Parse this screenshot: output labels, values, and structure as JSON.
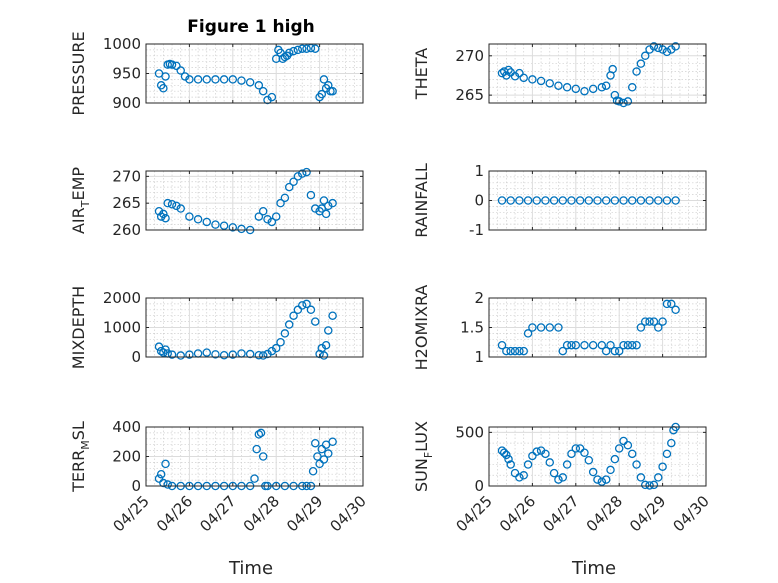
{
  "figure": {
    "title": "Figure 1 high",
    "marker_color": "#0072BD",
    "grid": true,
    "x_axis": {
      "range": [
        "04/25",
        "04/30"
      ],
      "ticks": [
        "04/25",
        "04/26",
        "04/27",
        "04/28",
        "04/29",
        "04/30"
      ],
      "label": "Time"
    }
  },
  "chart_data": [
    {
      "type": "scatter",
      "ylabel": "PRESSURE",
      "ylim": [
        900,
        1000
      ],
      "yticks": [
        900,
        950,
        1000
      ],
      "x": [
        0.3,
        0.35,
        0.4,
        0.45,
        0.5,
        0.55,
        0.6,
        0.7,
        0.8,
        0.9,
        1.0,
        1.2,
        1.4,
        1.6,
        1.8,
        2.0,
        2.2,
        2.4,
        2.6,
        2.7,
        2.8,
        2.9,
        3.0,
        3.05,
        3.1,
        3.15,
        3.2,
        3.25,
        3.3,
        3.4,
        3.5,
        3.6,
        3.7,
        3.8,
        3.9,
        4.0,
        4.05,
        4.1,
        4.15,
        4.2,
        4.25,
        4.3
      ],
      "y": [
        950,
        930,
        925,
        945,
        965,
        966,
        965,
        963,
        955,
        945,
        940,
        940,
        940,
        940,
        940,
        940,
        938,
        935,
        930,
        920,
        905,
        910,
        975,
        990,
        985,
        975,
        978,
        980,
        985,
        988,
        990,
        992,
        992,
        993,
        992,
        910,
        915,
        940,
        925,
        930,
        920,
        920
      ]
    },
    {
      "type": "scatter",
      "ylabel": "THETA",
      "ylim": [
        264,
        271.5
      ],
      "yticks": [
        265,
        270
      ],
      "x": [
        0.3,
        0.35,
        0.4,
        0.45,
        0.5,
        0.6,
        0.7,
        0.8,
        1.0,
        1.2,
        1.4,
        1.6,
        1.8,
        2.0,
        2.2,
        2.4,
        2.6,
        2.7,
        2.8,
        2.85,
        2.9,
        2.95,
        3.0,
        3.1,
        3.2,
        3.3,
        3.4,
        3.5,
        3.6,
        3.7,
        3.8,
        3.9,
        4.0,
        4.1,
        4.2,
        4.3
      ],
      "y": [
        267.8,
        268,
        267.5,
        268.2,
        267.9,
        267.4,
        267.8,
        267.2,
        267,
        266.8,
        266.5,
        266.2,
        266,
        265.8,
        265.5,
        265.8,
        266,
        266.2,
        267.5,
        268.3,
        265,
        264.3,
        264.2,
        264,
        264.2,
        266,
        268,
        269,
        270,
        270.8,
        271.2,
        271,
        270.8,
        270.5,
        270.8,
        271.2
      ]
    },
    {
      "type": "scatter",
      "ylabel": "AIR_TEMP",
      "ylim": [
        260,
        271
      ],
      "yticks": [
        260,
        265,
        270
      ],
      "x": [
        0.3,
        0.35,
        0.4,
        0.45,
        0.5,
        0.6,
        0.7,
        0.8,
        1.0,
        1.2,
        1.4,
        1.6,
        1.8,
        2.0,
        2.2,
        2.4,
        2.6,
        2.7,
        2.8,
        2.9,
        3.0,
        3.1,
        3.2,
        3.3,
        3.4,
        3.5,
        3.6,
        3.7,
        3.8,
        3.9,
        4.0,
        4.05,
        4.1,
        4.15,
        4.2,
        4.3
      ],
      "y": [
        263.5,
        262.5,
        263,
        262.2,
        265,
        264.8,
        264.5,
        264,
        262.5,
        262,
        261.5,
        261,
        260.8,
        260.5,
        260.2,
        260,
        262.5,
        263.5,
        262,
        261.5,
        262.5,
        265,
        266,
        268,
        269,
        270,
        270.5,
        270.8,
        266.5,
        264,
        263.5,
        264,
        265.5,
        263,
        264.5,
        265
      ]
    },
    {
      "type": "scatter",
      "ylabel": "RAINFALL",
      "ylim": [
        -1,
        1
      ],
      "yticks": [
        -1,
        0,
        1
      ],
      "x": [
        0.3,
        0.5,
        0.7,
        0.9,
        1.1,
        1.3,
        1.5,
        1.7,
        1.9,
        2.1,
        2.3,
        2.5,
        2.7,
        2.9,
        3.1,
        3.3,
        3.5,
        3.7,
        3.9,
        4.1,
        4.3
      ],
      "y": [
        0,
        0,
        0,
        0,
        0,
        0,
        0,
        0,
        0,
        0,
        0,
        0,
        0,
        0,
        0,
        0,
        0,
        0,
        0,
        0,
        0
      ]
    },
    {
      "type": "scatter",
      "ylabel": "MIXDEPTH",
      "ylim": [
        0,
        2000
      ],
      "yticks": [
        0,
        1000,
        2000
      ],
      "x": [
        0.3,
        0.35,
        0.4,
        0.45,
        0.5,
        0.6,
        0.8,
        1.0,
        1.2,
        1.4,
        1.6,
        1.8,
        2.0,
        2.2,
        2.4,
        2.6,
        2.7,
        2.8,
        2.9,
        3.0,
        3.1,
        3.2,
        3.3,
        3.4,
        3.5,
        3.6,
        3.7,
        3.8,
        3.9,
        4.0,
        4.05,
        4.1,
        4.15,
        4.2,
        4.3
      ],
      "y": [
        350,
        200,
        150,
        250,
        120,
        80,
        50,
        80,
        120,
        150,
        90,
        60,
        80,
        120,
        100,
        60,
        50,
        100,
        200,
        300,
        500,
        800,
        1100,
        1400,
        1600,
        1750,
        1800,
        1600,
        1200,
        100,
        300,
        50,
        400,
        900,
        1400
      ]
    },
    {
      "type": "scatter",
      "ylabel": "H2OMIXRA",
      "ylim": [
        1,
        2
      ],
      "yticks": [
        1,
        1.5,
        2
      ],
      "x": [
        0.3,
        0.4,
        0.5,
        0.6,
        0.7,
        0.8,
        0.9,
        1.0,
        1.2,
        1.4,
        1.6,
        1.7,
        1.8,
        1.9,
        2.0,
        2.2,
        2.4,
        2.6,
        2.7,
        2.8,
        2.9,
        3.0,
        3.1,
        3.2,
        3.3,
        3.4,
        3.5,
        3.6,
        3.7,
        3.8,
        3.9,
        4.0,
        4.1,
        4.2,
        4.3
      ],
      "y": [
        1.2,
        1.1,
        1.1,
        1.1,
        1.1,
        1.1,
        1.4,
        1.5,
        1.5,
        1.5,
        1.5,
        1.1,
        1.2,
        1.2,
        1.2,
        1.2,
        1.2,
        1.2,
        1.1,
        1.2,
        1.1,
        1.1,
        1.2,
        1.2,
        1.2,
        1.2,
        1.5,
        1.6,
        1.6,
        1.6,
        1.5,
        1.6,
        1.9,
        1.9,
        1.8
      ]
    },
    {
      "type": "scatter",
      "ylabel": "TERR_MSL",
      "ylim": [
        0,
        400
      ],
      "yticks": [
        0,
        200,
        400
      ],
      "x": [
        0.3,
        0.35,
        0.4,
        0.45,
        0.5,
        0.6,
        0.8,
        1.0,
        1.2,
        1.4,
        1.6,
        1.8,
        2.0,
        2.2,
        2.4,
        2.5,
        2.55,
        2.6,
        2.65,
        2.7,
        2.75,
        2.8,
        3.0,
        3.2,
        3.4,
        3.6,
        3.7,
        3.8,
        3.85,
        3.9,
        3.95,
        4.0,
        4.05,
        4.1,
        4.15,
        4.2,
        4.3
      ],
      "y": [
        50,
        80,
        20,
        150,
        10,
        0,
        0,
        0,
        0,
        0,
        0,
        0,
        0,
        0,
        0,
        50,
        250,
        350,
        360,
        200,
        0,
        0,
        0,
        0,
        0,
        0,
        0,
        0,
        100,
        290,
        200,
        150,
        250,
        180,
        280,
        220,
        300
      ]
    },
    {
      "type": "scatter",
      "ylabel": "SUN_FLUX",
      "ylim": [
        0,
        550
      ],
      "yticks": [
        0,
        500
      ],
      "x": [
        0.3,
        0.35,
        0.4,
        0.45,
        0.5,
        0.6,
        0.7,
        0.8,
        0.9,
        1.0,
        1.1,
        1.2,
        1.3,
        1.4,
        1.5,
        1.6,
        1.7,
        1.8,
        1.9,
        2.0,
        2.1,
        2.2,
        2.3,
        2.4,
        2.5,
        2.6,
        2.7,
        2.8,
        2.9,
        3.0,
        3.1,
        3.2,
        3.3,
        3.4,
        3.5,
        3.6,
        3.7,
        3.8,
        3.9,
        4.0,
        4.1,
        4.2,
        4.25,
        4.3
      ],
      "y": [
        330,
        310,
        290,
        250,
        200,
        120,
        80,
        100,
        200,
        280,
        320,
        330,
        300,
        220,
        120,
        60,
        80,
        200,
        300,
        350,
        350,
        310,
        240,
        130,
        60,
        40,
        60,
        150,
        250,
        350,
        420,
        380,
        300,
        200,
        80,
        10,
        5,
        10,
        80,
        180,
        300,
        400,
        520,
        560
      ]
    }
  ]
}
